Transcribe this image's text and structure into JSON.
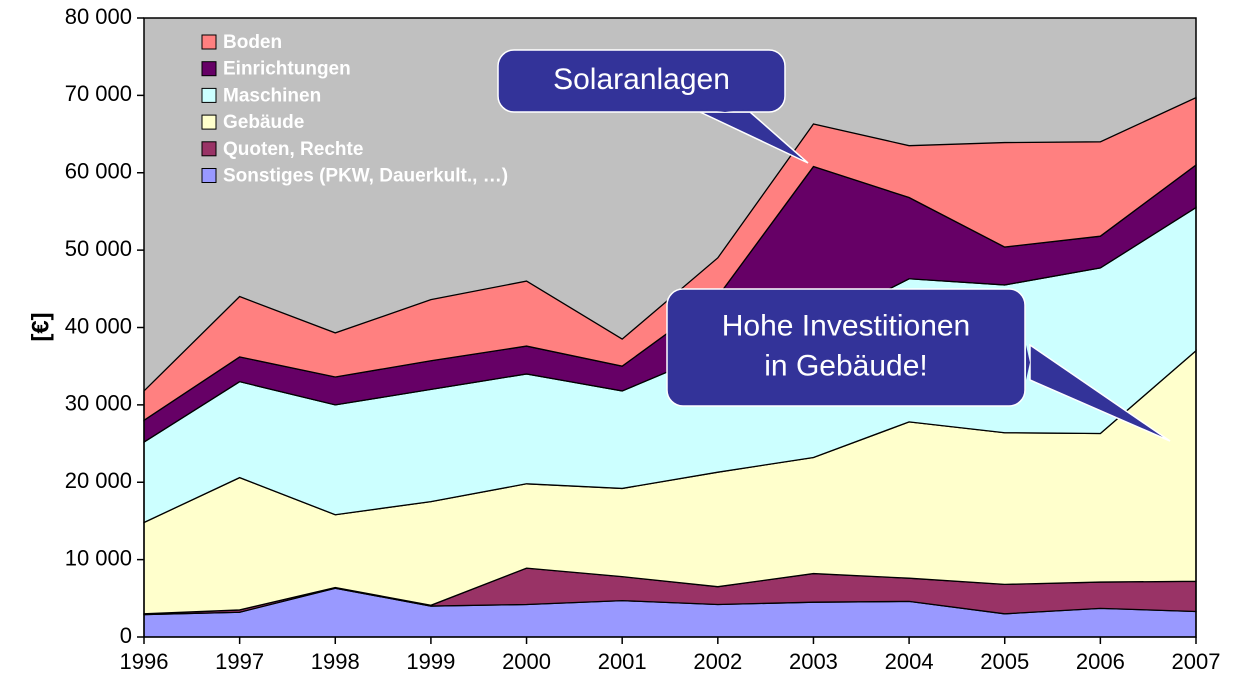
{
  "chart_data": {
    "type": "stacked-area",
    "y_label": "[€]",
    "categories": [
      "1996",
      "1997",
      "1998",
      "1999",
      "2000",
      "2001",
      "2002",
      "2003",
      "2004",
      "2005",
      "2006",
      "2007"
    ],
    "series": [
      {
        "name": "Sonstiges (PKW, Dauerkult., …)",
        "color": "#9999ff",
        "values": [
          2900,
          3200,
          6300,
          4000,
          4200,
          4700,
          4200,
          4500,
          4600,
          3000,
          3700,
          3300
        ]
      },
      {
        "name": "Quoten, Rechte",
        "color": "#993366",
        "values": [
          100,
          300,
          100,
          100,
          4700,
          3100,
          2300,
          3700,
          3000,
          3800,
          3400,
          3900
        ]
      },
      {
        "name": "Gebäude",
        "color": "#ffffcc",
        "values": [
          11800,
          17100,
          9400,
          13400,
          10900,
          11400,
          14800,
          15000,
          20200,
          19600,
          19200,
          29800
        ]
      },
      {
        "name": "Maschinen",
        "color": "#ccffff",
        "values": [
          10400,
          12400,
          14200,
          14500,
          14200,
          12600,
          15700,
          16800,
          18500,
          19100,
          21400,
          18500
        ]
      },
      {
        "name": "Einrichtungen",
        "color": "#660066",
        "values": [
          2800,
          3200,
          3600,
          3700,
          3600,
          3200,
          7000,
          20800,
          10500,
          4900,
          4100,
          5500
        ]
      },
      {
        "name": "Boden",
        "color": "#ff8080",
        "values": [
          3800,
          7800,
          5700,
          7900,
          8400,
          3500,
          5000,
          5500,
          6700,
          13500,
          12200,
          8700
        ]
      }
    ],
    "ylim": [
      0,
      80000
    ],
    "yticks": [
      0,
      {
        "value": 10000,
        "label": "10 000"
      },
      {
        "value": 20000,
        "label": "20 000"
      },
      {
        "value": 30000,
        "label": "30 000"
      },
      {
        "value": 40000,
        "label": "40 000"
      },
      {
        "value": 50000,
        "label": "50 000"
      },
      {
        "value": 60000,
        "label": "60 000"
      },
      {
        "value": 70000,
        "label": "70 000"
      },
      {
        "value": 80000,
        "label": "80 000"
      }
    ],
    "background": "#c0c0c0",
    "legend": "upper-left",
    "annotations": [
      {
        "lines": [
          "Solaranlagen"
        ]
      },
      {
        "lines": [
          "Hohe Investitionen",
          "in Gebäude!"
        ]
      }
    ]
  }
}
